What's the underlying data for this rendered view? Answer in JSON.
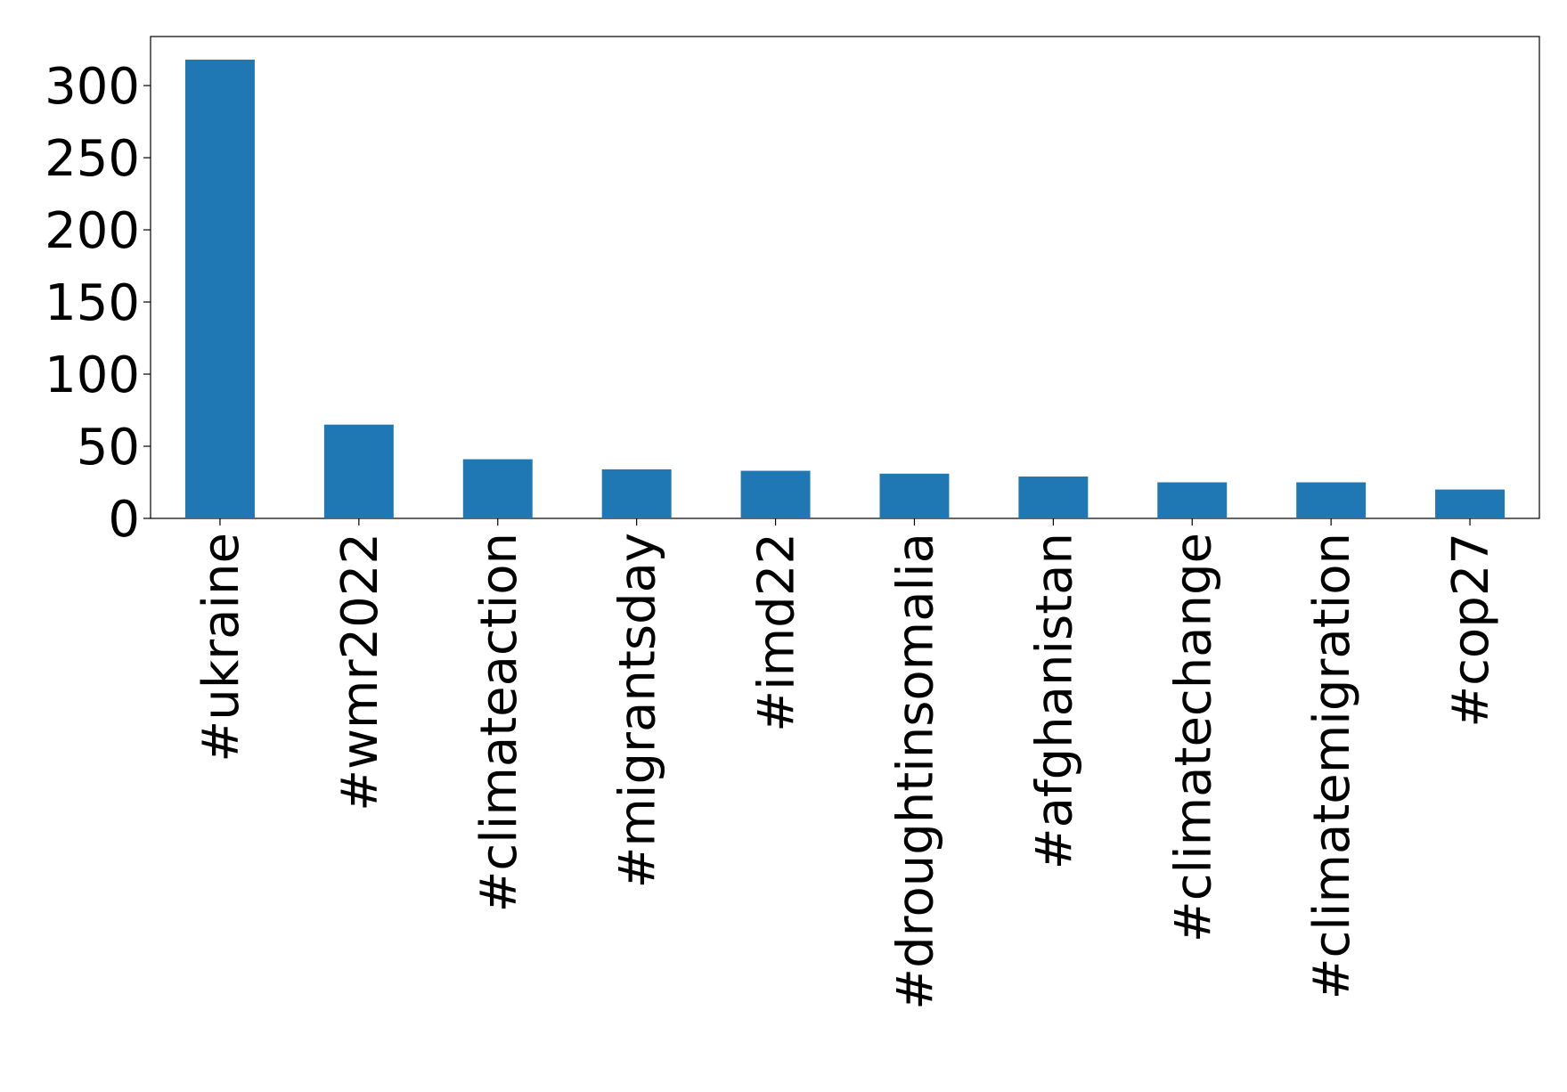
{
  "chart_data": {
    "type": "bar",
    "categories": [
      "#ukraine",
      "#wmr2022",
      "#climateaction",
      "#migrantsday",
      "#imd22",
      "#droughtinsomalia",
      "#afghanistan",
      "#climatechange",
      "#climatemigration",
      "#cop27"
    ],
    "values": [
      318,
      65,
      41,
      34,
      33,
      31,
      29,
      25,
      25,
      20
    ],
    "color": "#1f77b4",
    "ylim": [
      0,
      334
    ],
    "yticks": [
      0,
      50,
      100,
      150,
      200,
      250,
      300
    ],
    "grid": false
  }
}
